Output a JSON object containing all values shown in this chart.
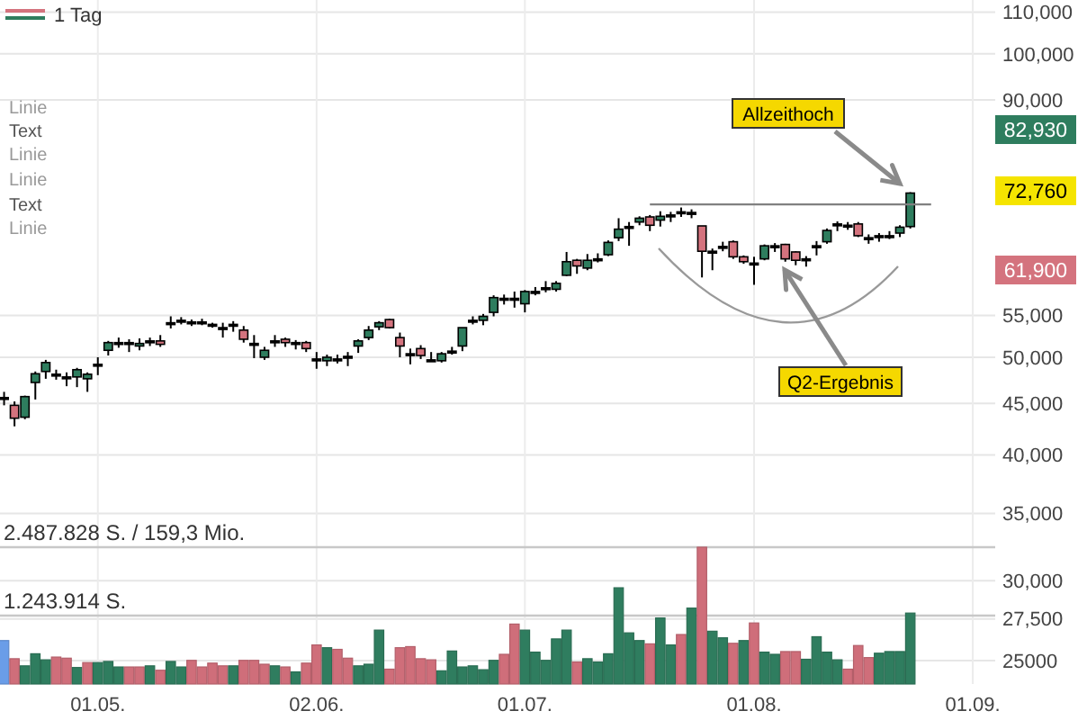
{
  "chart_data": {
    "type": "candlestick",
    "title": "1 Tag",
    "categories": [
      null,
      null,
      null,
      null,
      null,
      null,
      null,
      null,
      null,
      "01.05.",
      null,
      null,
      null,
      null,
      null,
      null,
      null,
      null,
      null,
      null,
      null,
      null,
      null,
      null,
      null,
      null,
      null,
      null,
      null,
      null,
      "02.06.",
      null,
      null,
      null,
      null,
      null,
      null,
      null,
      null,
      null,
      null,
      null,
      null,
      null,
      null,
      null,
      null,
      null,
      null,
      null,
      "01.07.",
      null,
      null,
      null,
      null,
      null,
      null,
      null,
      null,
      null,
      null,
      null,
      null,
      null,
      null,
      null,
      null,
      null,
      null,
      null,
      null,
      null,
      "01.08.",
      null,
      null,
      null,
      null,
      null,
      null,
      null,
      null,
      null,
      null,
      null,
      null,
      null,
      null,
      null,
      null,
      null,
      null,
      null,
      null,
      "01.09.",
      null
    ],
    "ohlc": [
      [
        45600,
        46200,
        44800,
        45600
      ],
      [
        44800,
        45200,
        42700,
        43500
      ],
      [
        43600,
        45800,
        43400,
        45700
      ],
      [
        47200,
        48400,
        45400,
        48150
      ],
      [
        48400,
        49700,
        47600,
        49400
      ],
      [
        48100,
        48600,
        47500,
        48100
      ],
      [
        47800,
        48300,
        46800,
        47800
      ],
      [
        47800,
        48800,
        46700,
        48600
      ],
      [
        47600,
        48300,
        46200,
        48100
      ],
      [
        49200,
        50000,
        48000,
        49200
      ],
      [
        50800,
        51900,
        50200,
        51700
      ],
      [
        51700,
        52300,
        51100,
        51700
      ],
      [
        51700,
        52100,
        50600,
        51700
      ],
      [
        51300,
        52200,
        50800,
        51600
      ],
      [
        51900,
        52300,
        51300,
        51900
      ],
      [
        51900,
        52600,
        51200,
        51500
      ],
      [
        54100,
        54900,
        53400,
        54100
      ],
      [
        54400,
        54800,
        53900,
        54400
      ],
      [
        54200,
        54500,
        53700,
        54200
      ],
      [
        54200,
        54600,
        53800,
        54200
      ],
      [
        53900,
        54100,
        53500,
        53900
      ],
      [
        53500,
        54100,
        52300,
        53500
      ],
      [
        53900,
        54300,
        53000,
        53900
      ],
      [
        53200,
        53700,
        51700,
        52100
      ],
      [
        51600,
        52600,
        49900,
        51600
      ],
      [
        50000,
        51200,
        49700,
        50800
      ],
      [
        51900,
        52600,
        51200,
        51900
      ],
      [
        52100,
        52300,
        51200,
        51700
      ],
      [
        51700,
        52000,
        50900,
        51700
      ],
      [
        51700,
        51900,
        50600,
        51000
      ],
      [
        49800,
        50600,
        48700,
        49800
      ],
      [
        49600,
        50300,
        49000,
        50000
      ],
      [
        49800,
        50300,
        49300,
        49800
      ],
      [
        50100,
        50600,
        49000,
        50100
      ],
      [
        51300,
        52100,
        50500,
        51900
      ],
      [
        52300,
        53700,
        52000,
        53200
      ],
      [
        53600,
        54300,
        53200,
        54100
      ],
      [
        54500,
        54600,
        53400,
        53500
      ],
      [
        52300,
        52900,
        50000,
        51300
      ],
      [
        50400,
        51000,
        49200,
        50400
      ],
      [
        51000,
        51400,
        49800,
        50200
      ],
      [
        49700,
        50600,
        49600,
        49700
      ],
      [
        49600,
        50600,
        49400,
        50400
      ],
      [
        50700,
        51200,
        50300,
        50700
      ],
      [
        51300,
        53500,
        50700,
        53500
      ],
      [
        54400,
        54900,
        53900,
        54400
      ],
      [
        54400,
        55200,
        53800,
        54900
      ],
      [
        55400,
        57600,
        54900,
        57300
      ],
      [
        57200,
        57700,
        56400,
        57200
      ],
      [
        57200,
        58100,
        56000,
        57200
      ],
      [
        56500,
        58300,
        55400,
        58100
      ],
      [
        58100,
        58700,
        57600,
        58100
      ],
      [
        58600,
        59500,
        58000,
        58600
      ],
      [
        58400,
        59500,
        58100,
        59200
      ],
      [
        60300,
        63600,
        60200,
        62200
      ],
      [
        62400,
        62600,
        60500,
        61600
      ],
      [
        61300,
        63300,
        61000,
        62400
      ],
      [
        62600,
        63400,
        62100,
        62600
      ],
      [
        63200,
        65300,
        63000,
        65000
      ],
      [
        65700,
        68700,
        65200,
        67000
      ],
      [
        67400,
        68100,
        64500,
        67400
      ],
      [
        68100,
        69000,
        67600,
        68700
      ],
      [
        68900,
        69200,
        66700,
        67600
      ],
      [
        68400,
        69800,
        67400,
        69000
      ],
      [
        69200,
        69700,
        68100,
        69200
      ],
      [
        69700,
        70400,
        68900,
        69700
      ],
      [
        69600,
        70100,
        68700,
        69600
      ],
      [
        67500,
        67500,
        60000,
        63700
      ],
      [
        63700,
        64100,
        61000,
        63700
      ],
      [
        64400,
        65100,
        63700,
        64400
      ],
      [
        65100,
        65300,
        62600,
        62900
      ],
      [
        62900,
        63100,
        61900,
        62200
      ],
      [
        62000,
        62900,
        59000,
        62000
      ],
      [
        62600,
        64700,
        62400,
        64500
      ],
      [
        64500,
        64900,
        63600,
        64500
      ],
      [
        64700,
        64800,
        62200,
        62600
      ],
      [
        63600,
        63700,
        61700,
        62400
      ],
      [
        62600,
        63000,
        61500,
        62600
      ],
      [
        64500,
        65200,
        63100,
        64500
      ],
      [
        65100,
        67100,
        64800,
        66800
      ],
      [
        67800,
        68200,
        66700,
        67800
      ],
      [
        67600,
        68100,
        66900,
        67600
      ],
      [
        67800,
        68100,
        65800,
        66000
      ],
      [
        65700,
        66200,
        64800,
        65700
      ],
      [
        66000,
        66400,
        65100,
        66000
      ],
      [
        66000,
        66700,
        65500,
        66000
      ],
      [
        66400,
        67600,
        65800,
        67300
      ],
      [
        67400,
        72900,
        67100,
        72760
      ],
      null,
      null,
      null,
      null,
      null,
      null,
      null
    ],
    "colors": [
      "#000000",
      "#d4737e",
      "#2e7d5e",
      "#2e7d5e",
      "#2e7d5e",
      "#000000",
      "#000000",
      "#2e7d5e",
      "#2e7d5e",
      "#000000",
      "#2e7d5e",
      "#000000",
      "#000000",
      "#2e7d5e",
      "#000000",
      "#d4737e",
      "#000000",
      "#000000",
      "#000000",
      "#000000",
      "#000000",
      "#000000",
      "#000000",
      "#d4737e",
      "#000000",
      "#2e7d5e",
      "#000000",
      "#d4737e",
      "#000000",
      "#d4737e",
      "#000000",
      "#2e7d5e",
      "#000000",
      "#000000",
      "#2e7d5e",
      "#2e7d5e",
      "#2e7d5e",
      "#d4737e",
      "#d4737e",
      "#000000",
      "#d4737e",
      "#000000",
      "#2e7d5e",
      "#000000",
      "#2e7d5e",
      "#000000",
      "#2e7d5e",
      "#2e7d5e",
      "#000000",
      "#000000",
      "#2e7d5e",
      "#000000",
      "#000000",
      "#2e7d5e",
      "#2e7d5e",
      "#d4737e",
      "#2e7d5e",
      "#000000",
      "#2e7d5e",
      "#2e7d5e",
      "#000000",
      "#2e7d5e",
      "#d4737e",
      "#2e7d5e",
      "#000000",
      "#000000",
      "#000000",
      "#d4737e",
      "#000000",
      "#000000",
      "#d4737e",
      "#d4737e",
      "#000000",
      "#2e7d5e",
      "#000000",
      "#d4737e",
      "#d4737e",
      "#000000",
      "#000000",
      "#2e7d5e",
      "#000000",
      "#000000",
      "#d4737e",
      "#000000",
      "#000000",
      "#000000",
      "#2e7d5e",
      "#2e7d5e",
      null,
      null,
      null,
      null,
      null,
      null,
      null
    ],
    "log": "y",
    "ylim": [
      23700,
      113100
    ],
    "yticks": [
      25000,
      {
        "value": 27500,
        "label": "27,500"
      },
      {
        "value": 30000,
        "label": "30,000"
      },
      {
        "value": 35000,
        "label": "35,000"
      },
      {
        "value": 40000,
        "label": "40,000"
      },
      {
        "value": 45000,
        "label": "45,000"
      },
      {
        "value": 50000,
        "label": "50,000"
      },
      {
        "value": 55000,
        "label": "55,000"
      },
      {
        "value": 90000,
        "label": "90,000"
      },
      {
        "value": 100000,
        "label": "100,000"
      },
      {
        "value": 110000,
        "label": "110,000"
      }
    ],
    "y2lim": [
      0,
      12439140
    ],
    "grid": true,
    "series": [
      {
        "type": "bar",
        "axis": "y2",
        "values": [
          790000,
          460000,
          330000,
          550000,
          440000,
          490000,
          470000,
          300000,
          390000,
          390000,
          410000,
          310000,
          310000,
          310000,
          330000,
          250000,
          410000,
          310000,
          430000,
          310000,
          380000,
          330000,
          330000,
          430000,
          430000,
          360000,
          330000,
          310000,
          220000,
          380000,
          710000,
          660000,
          630000,
          470000,
          330000,
          360000,
          980000,
          270000,
          660000,
          680000,
          460000,
          440000,
          240000,
          600000,
          310000,
          330000,
          260000,
          430000,
          540000,
          1090000,
          980000,
          580000,
          430000,
          820000,
          980000,
          400000,
          460000,
          400000,
          550000,
          1750000,
          930000,
          790000,
          730000,
          1200000,
          710000,
          900000,
          1380000,
          2487828,
          960000,
          840000,
          740000,
          790000,
          1110000,
          580000,
          540000,
          590000,
          590000,
          450000,
          860000,
          580000,
          440000,
          270000,
          700000,
          480000,
          560000,
          590000,
          590000,
          1290000,
          null,
          null,
          null,
          null,
          null,
          null,
          null
        ],
        "colors": [
          "#6a9de8",
          "#cf6e7a",
          "#2f7d5f",
          "#2f7d5f",
          "#2f7d5f",
          "#cf6e7a",
          "#cf6e7a",
          "#2f7d5f",
          "#cf6e7a",
          "#2f7d5f",
          "#2f7d5f",
          "#2f7d5f",
          "#cf6e7a",
          "#cf6e7a",
          "#2f7d5f",
          "#cf6e7a",
          "#2f7d5f",
          "#2f7d5f",
          "#cf6e7a",
          "#cf6e7a",
          "#cf6e7a",
          "#cf6e7a",
          "#2f7d5f",
          "#cf6e7a",
          "#cf6e7a",
          "#cf6e7a",
          "#2f7d5f",
          "#cf6e7a",
          "#2f7d5f",
          "#cf6e7a",
          "#cf6e7a",
          "#2f7d5f",
          "#cf6e7a",
          "#cf6e7a",
          "#2f7d5f",
          "#2f7d5f",
          "#2f7d5f",
          "#cf6e7a",
          "#cf6e7a",
          "#cf6e7a",
          "#cf6e7a",
          "#cf6e7a",
          "#2f7d5f",
          "#2f7d5f",
          "#2f7d5f",
          "#2f7d5f",
          "#2f7d5f",
          "#2f7d5f",
          "#cf6e7a",
          "#cf6e7a",
          "#2f7d5f",
          "#2f7d5f",
          "#2f7d5f",
          "#2f7d5f",
          "#2f7d5f",
          "#cf6e7a",
          "#2f7d5f",
          "#2f7d5f",
          "#2f7d5f",
          "#2f7d5f",
          "#2f7d5f",
          "#2f7d5f",
          "#cf6e7a",
          "#2f7d5f",
          "#2f7d5f",
          "#cf6e7a",
          "#2f7d5f",
          "#cf6e7a",
          "#2f7d5f",
          "#2f7d5f",
          "#cf6e7a",
          "#2f7d5f",
          "#cf6e7a",
          "#2f7d5f",
          "#2f7d5f",
          "#cf6e7a",
          "#cf6e7a",
          "#2f7d5f",
          "#2f7d5f",
          "#2f7d5f",
          "#2f7d5f",
          "#cf6e7a",
          "#cf6e7a",
          "#cf6e7a",
          "#2f7d5f",
          "#2f7d5f",
          "#2f7d5f",
          "#2f7d5f",
          null,
          null,
          null,
          null,
          null,
          null,
          null
        ]
      },
      {
        "type": "line",
        "color": "#808080",
        "values": [
          null,
          null,
          null,
          null,
          null,
          null,
          null,
          null,
          null,
          null,
          null,
          null,
          null,
          null,
          null,
          null,
          null,
          null,
          null,
          null,
          null,
          null,
          null,
          null,
          null,
          null,
          null,
          null,
          null,
          null,
          null,
          null,
          null,
          null,
          null,
          null,
          null,
          null,
          null,
          null,
          null,
          null,
          null,
          null,
          null,
          null,
          null,
          null,
          null,
          null,
          null,
          null,
          null,
          null,
          null,
          null,
          null,
          null,
          null,
          null,
          null,
          null,
          70900,
          70900,
          70900,
          70900,
          70900,
          70900,
          70900,
          70900,
          70900,
          70900,
          70900,
          70900,
          70900,
          70900,
          70900,
          70900,
          70900,
          70900,
          70900,
          70900,
          70900,
          70900,
          70900,
          70900,
          70900,
          70900,
          70900,
          70900,
          null,
          null,
          null,
          null,
          null
        ]
      }
    ],
    "ref_lines": [
      {
        "axis": "y2",
        "value": 2487828,
        "label": "2.487.828 S. / 159,3 Mio.",
        "color": "#c8c8c8"
      },
      {
        "axis": "y2",
        "value": 1243914,
        "label": "1.243.914 S.",
        "color": "#c8c8c8"
      }
    ],
    "annotations": [
      "Linie",
      "Text",
      "Linie",
      "Linie",
      "Text",
      "Linie",
      "Allzeithoch",
      "Q2-Ergebnis",
      "82,930",
      "72,760",
      "61,900"
    ]
  }
}
